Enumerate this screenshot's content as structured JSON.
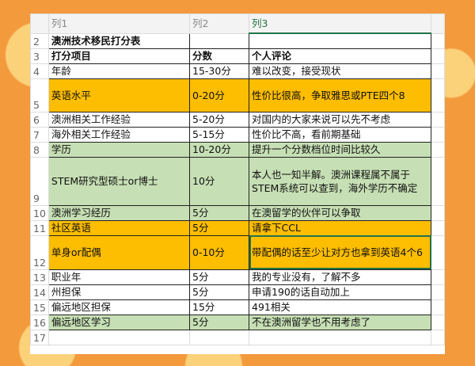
{
  "columns": [
    "列1",
    "列2",
    "列3"
  ],
  "rows": [
    {
      "n": "2",
      "a": "澳洲技术移民打分表",
      "b": "",
      "c": "",
      "style": "bold"
    },
    {
      "n": "3",
      "a": "打分项目",
      "b": "分数",
      "c": "个人评论",
      "style": "bold"
    },
    {
      "n": "4",
      "a": "年龄",
      "b": "15-30分",
      "c": "难以改变，接受现状",
      "style": ""
    },
    {
      "n": "5",
      "a": "英语水平",
      "b": "0-20分",
      "c": "性价比很高，争取雅思或PTE四个8",
      "style": "orange"
    },
    {
      "n": "6",
      "a": "澳洲相关工作经验",
      "b": "5-20分",
      "c": "对国内的大家来说可以先不考虑",
      "style": ""
    },
    {
      "n": "7",
      "a": "海外相关工作经验",
      "b": "5-15分",
      "c": "性价比不高，看前期基础",
      "style": ""
    },
    {
      "n": "8",
      "a": "学历",
      "b": "10-20分",
      "c": "提升一个分数档位时间比较久",
      "style": "green"
    },
    {
      "n": "9",
      "a": "STEM研究型硕士or博士",
      "b": "10分",
      "c": "本人也一知半解。澳洲课程属不属于STEM系统可以查到，海外学历不确定",
      "style": "green"
    },
    {
      "n": "10",
      "a": "澳洲学习经历",
      "b": "5分",
      "c": "在澳留学的伙伴可以争取",
      "style": "green"
    },
    {
      "n": "11",
      "a": "社区英语",
      "b": "5分",
      "c": "请拿下CCL",
      "style": "orange"
    },
    {
      "n": "12",
      "a": "单身or配偶",
      "b": "0-10分",
      "c": "带配偶的话至少让对方也拿到英语4个6",
      "style": "orange"
    },
    {
      "n": "13",
      "a": "职业年",
      "b": "5分",
      "c": "我的专业没有，了解不多",
      "style": ""
    },
    {
      "n": "14",
      "a": "州担保",
      "b": "5分",
      "c": "申请190的话自动加上",
      "style": ""
    },
    {
      "n": "15",
      "a": "偏远地区担保",
      "b": "15分",
      "c": "491相关",
      "style": ""
    },
    {
      "n": "16",
      "a": "偏远地区学习",
      "b": "5分",
      "c": "不在澳洲留学也不用考虑了",
      "style": "green"
    },
    {
      "n": "17",
      "a": "",
      "b": "",
      "c": "",
      "style": "empty"
    }
  ],
  "colors": {
    "orange": "#fdbd00",
    "green": "#c6dfb4",
    "selection": "#217346",
    "background": "#f39a3c"
  }
}
